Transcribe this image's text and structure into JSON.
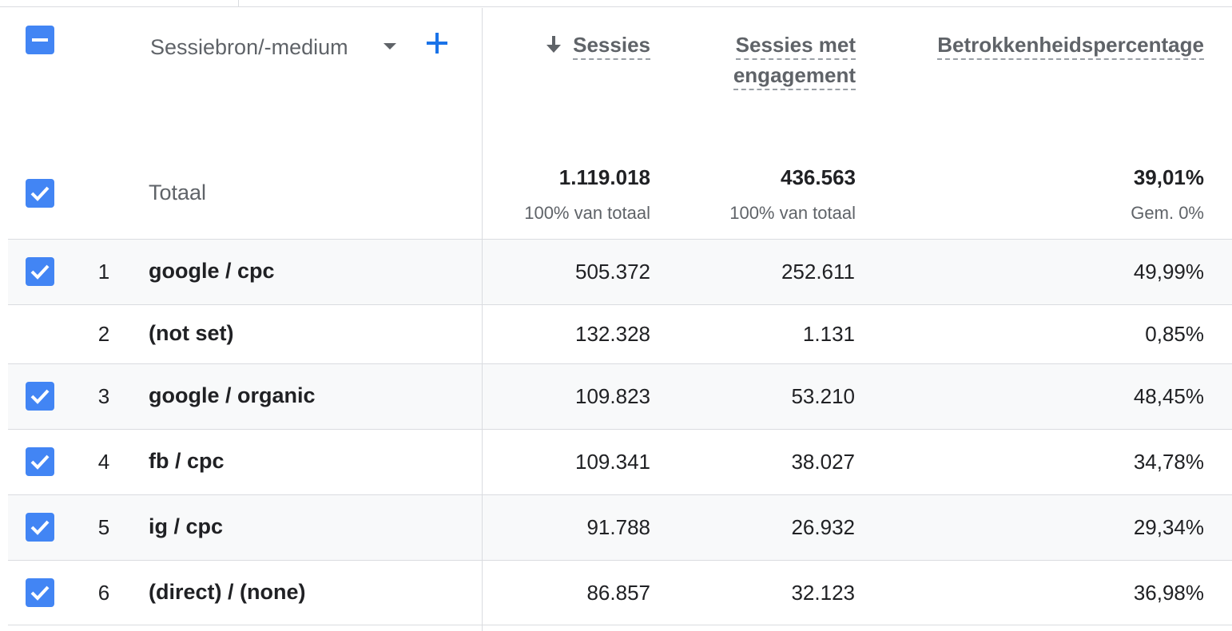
{
  "header": {
    "dimension_label": "Sessiebron/-medium",
    "columns": [
      {
        "label_line1": "Sessies",
        "label_line2": "",
        "sorted_desc": true
      },
      {
        "label_line1": "Sessies met",
        "label_line2": "engagement",
        "sorted_desc": false
      },
      {
        "label_line1": "Betrokkenheidspercentage",
        "label_line2": "",
        "sorted_desc": false
      }
    ]
  },
  "totals": {
    "label": "Totaal",
    "sessies": "1.119.018",
    "sessies_sub": "100% van totaal",
    "engaged": "436.563",
    "engaged_sub": "100% van totaal",
    "rate": "39,01%",
    "rate_sub": "Gem. 0%"
  },
  "rows": [
    {
      "num": "1",
      "name": "google / cpc",
      "sessies": "505.372",
      "engaged": "252.611",
      "rate": "49,99%",
      "checked": true
    },
    {
      "num": "2",
      "name": "(not set)",
      "sessies": "132.328",
      "engaged": "1.131",
      "rate": "0,85%",
      "checked": false
    },
    {
      "num": "3",
      "name": "google / organic",
      "sessies": "109.823",
      "engaged": "53.210",
      "rate": "48,45%",
      "checked": true
    },
    {
      "num": "4",
      "name": "fb / cpc",
      "sessies": "109.341",
      "engaged": "38.027",
      "rate": "34,78%",
      "checked": true
    },
    {
      "num": "5",
      "name": "ig / cpc",
      "sessies": "91.788",
      "engaged": "26.932",
      "rate": "29,34%",
      "checked": true
    },
    {
      "num": "6",
      "name": "(direct) / (none)",
      "sessies": "86.857",
      "engaged": "32.123",
      "rate": "36,98%",
      "checked": true
    }
  ],
  "colors": {
    "accent": "#4285f4",
    "plus": "#1a73e8",
    "row_shade": "#f8f9fa",
    "divider": "#dadce0"
  }
}
